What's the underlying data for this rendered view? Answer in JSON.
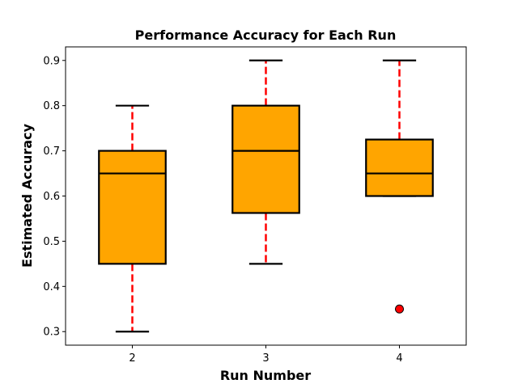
{
  "chart_data": {
    "type": "box",
    "title": "Performance Accuracy for Each Run",
    "xlabel": "Run Number",
    "ylabel": "Estimated Accuracy",
    "categories": [
      "2",
      "3",
      "4"
    ],
    "ylim": [
      0.27,
      0.93
    ],
    "yticks": [
      0.3,
      0.4,
      0.5,
      0.6,
      0.7,
      0.8,
      0.9
    ],
    "ytick_labels": [
      "0.3",
      "0.4",
      "0.5",
      "0.6",
      "0.7",
      "0.8",
      "0.9"
    ],
    "boxes": [
      {
        "category": "2",
        "whisker_low": 0.3,
        "q1": 0.45,
        "median": 0.65,
        "q3": 0.7,
        "whisker_high": 0.8,
        "outliers": []
      },
      {
        "category": "3",
        "whisker_low": 0.45,
        "q1": 0.5625,
        "median": 0.7,
        "q3": 0.8,
        "whisker_high": 0.9,
        "outliers": []
      },
      {
        "category": "4",
        "whisker_low": 0.6,
        "q1": 0.6,
        "median": 0.65,
        "q3": 0.725,
        "whisker_high": 0.9,
        "outliers": [
          0.35
        ]
      }
    ],
    "colors": {
      "box_fill": "#FFA500",
      "box_edge": "#000000",
      "whisker": "#FF0000",
      "cap": "#000000",
      "median": "#000000",
      "outlier_fill": "#FF0000",
      "outlier_edge": "#000000"
    },
    "grid": false,
    "legend": "none"
  }
}
